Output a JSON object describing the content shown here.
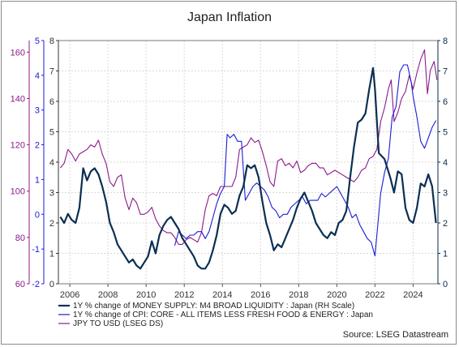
{
  "chart_data": {
    "type": "line",
    "title": "Japan Inflation",
    "source": "Source: LSEG Datastream",
    "x_ticks": [
      2006,
      2008,
      2010,
      2012,
      2014,
      2016,
      2018,
      2020,
      2022,
      2024
    ],
    "xlim": [
      2005.4,
      2025.3
    ],
    "axes": {
      "jpy": {
        "ticks": [
          60,
          80,
          100,
          120,
          140,
          160
        ],
        "ylim": [
          60,
          165
        ],
        "color": "#8b1a8b"
      },
      "cpi": {
        "ticks": [
          -2,
          -1,
          0,
          1,
          2,
          3,
          4,
          5
        ],
        "ylim": [
          -2,
          5
        ],
        "color": "#1c1cd6"
      },
      "left_m4": {
        "ticks": [
          0,
          1,
          2,
          3,
          4,
          5,
          6,
          7,
          8
        ],
        "ylim": [
          0,
          8
        ],
        "color": "#333333"
      },
      "right_m4": {
        "ticks": [
          0,
          1,
          2,
          3,
          4,
          5,
          6,
          7,
          8
        ],
        "ylim": [
          0,
          8
        ],
        "color": "#0a2a4a"
      }
    },
    "grid": true,
    "legend_position": "bottom",
    "series": [
      {
        "name": "1Y % change of MONEY SUPPLY: M4 BROAD LIQUIDITY : Japan (RH Scale)",
        "axis": "right_m4",
        "color": "#0b2f52",
        "points": [
          [
            2005.5,
            2.2
          ],
          [
            2005.7,
            2.0
          ],
          [
            2005.9,
            2.3
          ],
          [
            2006.1,
            2.1
          ],
          [
            2006.3,
            2.0
          ],
          [
            2006.5,
            2.5
          ],
          [
            2006.7,
            3.8
          ],
          [
            2006.9,
            3.4
          ],
          [
            2007.1,
            3.7
          ],
          [
            2007.3,
            3.8
          ],
          [
            2007.5,
            3.6
          ],
          [
            2007.7,
            3.2
          ],
          [
            2007.9,
            2.7
          ],
          [
            2008.1,
            2.0
          ],
          [
            2008.3,
            1.7
          ],
          [
            2008.5,
            1.3
          ],
          [
            2008.7,
            1.1
          ],
          [
            2008.9,
            0.9
          ],
          [
            2009.1,
            0.7
          ],
          [
            2009.3,
            0.8
          ],
          [
            2009.5,
            0.6
          ],
          [
            2009.7,
            0.5
          ],
          [
            2009.9,
            0.7
          ],
          [
            2010.1,
            0.9
          ],
          [
            2010.3,
            1.4
          ],
          [
            2010.5,
            1.0
          ],
          [
            2010.7,
            1.6
          ],
          [
            2010.9,
            1.9
          ],
          [
            2011.1,
            2.1
          ],
          [
            2011.3,
            2.2
          ],
          [
            2011.5,
            2.0
          ],
          [
            2011.7,
            1.8
          ],
          [
            2011.9,
            1.5
          ],
          [
            2012.1,
            1.3
          ],
          [
            2012.3,
            1.1
          ],
          [
            2012.5,
            0.9
          ],
          [
            2012.7,
            0.6
          ],
          [
            2012.9,
            0.5
          ],
          [
            2013.1,
            0.5
          ],
          [
            2013.3,
            0.7
          ],
          [
            2013.5,
            1.1
          ],
          [
            2013.7,
            1.6
          ],
          [
            2013.9,
            2.3
          ],
          [
            2014.1,
            2.6
          ],
          [
            2014.3,
            2.5
          ],
          [
            2014.5,
            2.3
          ],
          [
            2014.7,
            2.4
          ],
          [
            2014.9,
            2.9
          ],
          [
            2015.1,
            3.2
          ],
          [
            2015.3,
            3.9
          ],
          [
            2015.5,
            3.8
          ],
          [
            2015.7,
            3.9
          ],
          [
            2015.9,
            3.5
          ],
          [
            2016.1,
            2.7
          ],
          [
            2016.3,
            2.0
          ],
          [
            2016.5,
            1.6
          ],
          [
            2016.7,
            1.1
          ],
          [
            2016.9,
            1.3
          ],
          [
            2017.1,
            1.2
          ],
          [
            2017.3,
            1.5
          ],
          [
            2017.5,
            1.8
          ],
          [
            2017.7,
            2.1
          ],
          [
            2017.9,
            2.5
          ],
          [
            2018.1,
            2.8
          ],
          [
            2018.3,
            3.0
          ],
          [
            2018.5,
            2.7
          ],
          [
            2018.7,
            2.4
          ],
          [
            2018.9,
            2.0
          ],
          [
            2019.1,
            1.8
          ],
          [
            2019.3,
            1.6
          ],
          [
            2019.5,
            1.5
          ],
          [
            2019.7,
            1.7
          ],
          [
            2019.9,
            1.6
          ],
          [
            2020.1,
            2.0
          ],
          [
            2020.3,
            2.1
          ],
          [
            2020.5,
            2.4
          ],
          [
            2020.7,
            3.5
          ],
          [
            2020.9,
            4.5
          ],
          [
            2021.1,
            5.3
          ],
          [
            2021.3,
            5.4
          ],
          [
            2021.5,
            5.6
          ],
          [
            2021.7,
            6.4
          ],
          [
            2021.9,
            7.1
          ],
          [
            2022.0,
            6.4
          ],
          [
            2022.2,
            4.3
          ],
          [
            2022.5,
            4.1
          ],
          [
            2022.8,
            3.5
          ],
          [
            2023.0,
            3.0
          ],
          [
            2023.2,
            3.7
          ],
          [
            2023.4,
            3.6
          ],
          [
            2023.6,
            2.5
          ],
          [
            2023.8,
            2.1
          ],
          [
            2024.0,
            2.0
          ],
          [
            2024.2,
            2.5
          ],
          [
            2024.4,
            3.3
          ],
          [
            2024.6,
            3.2
          ],
          [
            2024.8,
            3.6
          ],
          [
            2025.0,
            3.2
          ],
          [
            2025.2,
            2.0
          ]
        ]
      },
      {
        "name": "1Y % change of CPI: CORE - ALL ITEMS LESS FRESH FOOD & ENERGY : Japan",
        "axis": "cpi",
        "color": "#1c1cd6",
        "points": [
          [
            2011.5,
            -0.9
          ],
          [
            2011.7,
            -0.5
          ],
          [
            2011.9,
            -0.6
          ],
          [
            2012.1,
            -0.7
          ],
          [
            2012.3,
            -0.6
          ],
          [
            2012.5,
            -0.6
          ],
          [
            2012.7,
            -0.5
          ],
          [
            2012.9,
            -0.5
          ],
          [
            2013.1,
            -0.7
          ],
          [
            2013.3,
            -0.5
          ],
          [
            2013.5,
            -0.1
          ],
          [
            2013.7,
            0.3
          ],
          [
            2013.9,
            0.6
          ],
          [
            2014.1,
            0.8
          ],
          [
            2014.25,
            2.3
          ],
          [
            2014.4,
            2.2
          ],
          [
            2014.6,
            2.3
          ],
          [
            2014.8,
            2.1
          ],
          [
            2015.0,
            2.1
          ],
          [
            2015.2,
            0.4
          ],
          [
            2015.4,
            0.6
          ],
          [
            2015.6,
            0.8
          ],
          [
            2015.8,
            0.9
          ],
          [
            2016.0,
            0.8
          ],
          [
            2016.2,
            0.7
          ],
          [
            2016.4,
            0.5
          ],
          [
            2016.6,
            0.2
          ],
          [
            2016.8,
            0.1
          ],
          [
            2017.0,
            -0.1
          ],
          [
            2017.2,
            0.0
          ],
          [
            2017.4,
            0.0
          ],
          [
            2017.6,
            0.2
          ],
          [
            2017.8,
            0.3
          ],
          [
            2018.0,
            0.4
          ],
          [
            2018.2,
            0.5
          ],
          [
            2018.4,
            0.3
          ],
          [
            2018.6,
            0.4
          ],
          [
            2018.8,
            0.4
          ],
          [
            2019.0,
            0.4
          ],
          [
            2019.2,
            0.6
          ],
          [
            2019.4,
            0.5
          ],
          [
            2019.6,
            0.6
          ],
          [
            2019.8,
            0.7
          ],
          [
            2020.0,
            0.8
          ],
          [
            2020.2,
            0.6
          ],
          [
            2020.4,
            0.4
          ],
          [
            2020.6,
            0.2
          ],
          [
            2020.8,
            -0.1
          ],
          [
            2021.0,
            0.0
          ],
          [
            2021.2,
            -0.3
          ],
          [
            2021.4,
            -0.5
          ],
          [
            2021.6,
            -0.7
          ],
          [
            2021.8,
            -0.8
          ],
          [
            2022.0,
            -1.2
          ],
          [
            2022.1,
            -0.6
          ],
          [
            2022.3,
            0.6
          ],
          [
            2022.5,
            1.2
          ],
          [
            2022.7,
            1.6
          ],
          [
            2022.9,
            2.8
          ],
          [
            2023.1,
            3.1
          ],
          [
            2023.3,
            4.1
          ],
          [
            2023.5,
            4.3
          ],
          [
            2023.7,
            4.3
          ],
          [
            2023.9,
            3.8
          ],
          [
            2024.0,
            3.4
          ],
          [
            2024.2,
            2.8
          ],
          [
            2024.4,
            2.1
          ],
          [
            2024.6,
            1.9
          ],
          [
            2024.8,
            2.2
          ],
          [
            2025.0,
            2.5
          ],
          [
            2025.2,
            2.7
          ]
        ]
      },
      {
        "name": "JPY TO USD (LSEG DS)",
        "axis": "jpy",
        "color": "#8b1a8b",
        "points": [
          [
            2005.5,
            110
          ],
          [
            2005.7,
            112
          ],
          [
            2005.9,
            118
          ],
          [
            2006.1,
            116
          ],
          [
            2006.3,
            113
          ],
          [
            2006.5,
            116
          ],
          [
            2006.7,
            117
          ],
          [
            2006.9,
            118
          ],
          [
            2007.1,
            120
          ],
          [
            2007.3,
            119
          ],
          [
            2007.5,
            122
          ],
          [
            2007.7,
            116
          ],
          [
            2007.9,
            112
          ],
          [
            2008.1,
            104
          ],
          [
            2008.3,
            102
          ],
          [
            2008.5,
            106
          ],
          [
            2008.7,
            107
          ],
          [
            2008.9,
            97
          ],
          [
            2009.1,
            92
          ],
          [
            2009.3,
            97
          ],
          [
            2009.5,
            95
          ],
          [
            2009.7,
            90
          ],
          [
            2009.9,
            90
          ],
          [
            2010.1,
            91
          ],
          [
            2010.3,
            93
          ],
          [
            2010.5,
            88
          ],
          [
            2010.7,
            85
          ],
          [
            2010.9,
            83
          ],
          [
            2011.1,
            82
          ],
          [
            2011.3,
            82
          ],
          [
            2011.5,
            80
          ],
          [
            2011.7,
            77
          ],
          [
            2011.9,
            77
          ],
          [
            2012.1,
            79
          ],
          [
            2012.3,
            80
          ],
          [
            2012.5,
            79
          ],
          [
            2012.7,
            78
          ],
          [
            2012.9,
            82
          ],
          [
            2013.1,
            92
          ],
          [
            2013.3,
            98
          ],
          [
            2013.5,
            99
          ],
          [
            2013.7,
            98
          ],
          [
            2013.9,
            102
          ],
          [
            2014.1,
            102
          ],
          [
            2014.3,
            102
          ],
          [
            2014.5,
            102
          ],
          [
            2014.7,
            106
          ],
          [
            2014.9,
            118
          ],
          [
            2015.1,
            119
          ],
          [
            2015.3,
            120
          ],
          [
            2015.5,
            123
          ],
          [
            2015.7,
            121
          ],
          [
            2015.9,
            122
          ],
          [
            2016.1,
            117
          ],
          [
            2016.3,
            111
          ],
          [
            2016.5,
            104
          ],
          [
            2016.7,
            102
          ],
          [
            2016.9,
            113
          ],
          [
            2017.1,
            114
          ],
          [
            2017.3,
            111
          ],
          [
            2017.5,
            112
          ],
          [
            2017.7,
            110
          ],
          [
            2017.9,
            113
          ],
          [
            2018.1,
            108
          ],
          [
            2018.3,
            109
          ],
          [
            2018.5,
            111
          ],
          [
            2018.7,
            112
          ],
          [
            2018.9,
            112
          ],
          [
            2019.1,
            110
          ],
          [
            2019.3,
            110
          ],
          [
            2019.5,
            107
          ],
          [
            2019.7,
            108
          ],
          [
            2019.9,
            109
          ],
          [
            2020.1,
            108
          ],
          [
            2020.3,
            107
          ],
          [
            2020.5,
            106
          ],
          [
            2020.7,
            105
          ],
          [
            2020.9,
            104
          ],
          [
            2021.1,
            106
          ],
          [
            2021.3,
            109
          ],
          [
            2021.5,
            110
          ],
          [
            2021.7,
            114
          ],
          [
            2021.9,
            115
          ],
          [
            2022.1,
            118
          ],
          [
            2022.3,
            130
          ],
          [
            2022.5,
            136
          ],
          [
            2022.7,
            144
          ],
          [
            2022.85,
            148
          ],
          [
            2023.0,
            130
          ],
          [
            2023.2,
            134
          ],
          [
            2023.4,
            140
          ],
          [
            2023.6,
            143
          ],
          [
            2023.8,
            150
          ],
          [
            2024.0,
            144
          ],
          [
            2024.2,
            151
          ],
          [
            2024.4,
            157
          ],
          [
            2024.6,
            161
          ],
          [
            2024.75,
            142
          ],
          [
            2024.9,
            152
          ],
          [
            2025.1,
            156
          ],
          [
            2025.25,
            148
          ]
        ]
      }
    ]
  }
}
